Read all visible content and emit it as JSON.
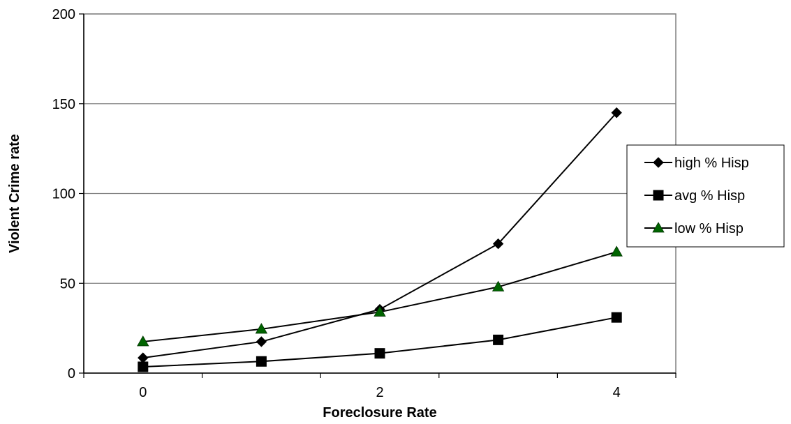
{
  "chart_data": {
    "type": "line",
    "xlabel": "Foreclosure Rate",
    "ylabel": "Violent  Crime rate",
    "xlim": [
      -0.5,
      4.5
    ],
    "ylim": [
      0,
      200
    ],
    "xticks": [
      0,
      2,
      4
    ],
    "yticks": [
      0,
      50,
      100,
      150,
      200
    ],
    "grid": {
      "horizontal": true,
      "vertical": false
    },
    "legend_position": "right",
    "x": [
      0,
      1,
      2,
      3,
      4
    ],
    "series": [
      {
        "name": "high % Hisp",
        "marker": "diamond",
        "color": "#000000",
        "values": [
          8.5,
          17.5,
          35.5,
          72,
          145
        ]
      },
      {
        "name": "avg % Hisp",
        "marker": "square",
        "color": "#000000",
        "values": [
          3.5,
          6.5,
          11,
          18.5,
          31
        ]
      },
      {
        "name": "low % Hisp",
        "marker": "triangle",
        "color": "#006400",
        "values": [
          17.5,
          24.5,
          34,
          48,
          67.5
        ]
      }
    ]
  }
}
